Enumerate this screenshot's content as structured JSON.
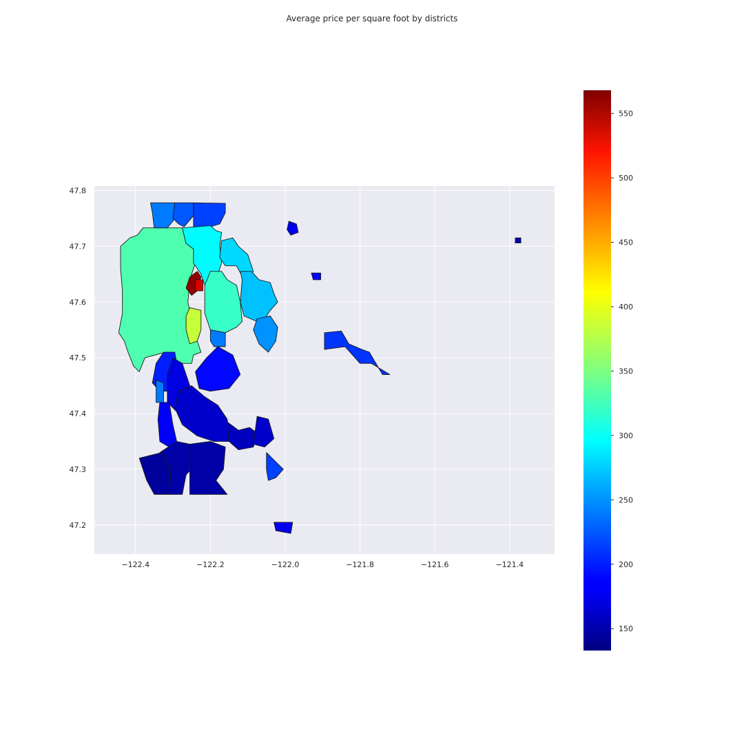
{
  "title": "Average price per square foot by districts",
  "chart_data": {
    "type": "choropleth",
    "title": "Average price per square foot by districts",
    "xlabel": "",
    "ylabel": "",
    "x_ticks": [
      -122.4,
      -122.2,
      -122.0,
      -121.8,
      -121.6,
      -121.4
    ],
    "x_tick_labels": [
      "−122.4",
      "−122.2",
      "−122.0",
      "−121.8",
      "−121.6",
      "−121.4"
    ],
    "y_ticks": [
      47.2,
      47.3,
      47.4,
      47.5,
      47.6,
      47.7,
      47.8
    ],
    "y_tick_labels": [
      "47.2",
      "47.3",
      "47.4",
      "47.5",
      "47.6",
      "47.7",
      "47.8"
    ],
    "xlim": [
      -122.51,
      -121.28
    ],
    "ylim": [
      47.148,
      47.808
    ],
    "grid": true,
    "colormap": "jet",
    "colorbar": {
      "range": [
        133,
        568
      ],
      "ticks": [
        150,
        200,
        250,
        300,
        350,
        400,
        450,
        500,
        550
      ],
      "placement": "right"
    },
    "districts": [
      {
        "id": "d01",
        "value": 330,
        "outline": [
          [
            -122.38,
            47.733
          ],
          [
            -122.275,
            47.733
          ],
          [
            -122.265,
            47.705
          ],
          [
            -122.245,
            47.695
          ],
          [
            -122.24,
            47.67
          ],
          [
            -122.255,
            47.64
          ],
          [
            -122.26,
            47.6
          ],
          [
            -122.25,
            47.565
          ],
          [
            -122.235,
            47.53
          ],
          [
            -122.225,
            47.51
          ],
          [
            -122.245,
            47.505
          ],
          [
            -122.25,
            47.49
          ],
          [
            -122.3,
            47.49
          ],
          [
            -122.32,
            47.51
          ],
          [
            -122.375,
            47.5
          ],
          [
            -122.39,
            47.475
          ],
          [
            -122.405,
            47.485
          ],
          [
            -122.42,
            47.51
          ],
          [
            -122.43,
            47.53
          ],
          [
            -122.445,
            47.545
          ],
          [
            -122.435,
            47.58
          ],
          [
            -122.435,
            47.62
          ],
          [
            -122.44,
            47.66
          ],
          [
            -122.44,
            47.7
          ],
          [
            -122.415,
            47.715
          ],
          [
            -122.395,
            47.72
          ]
        ]
      },
      {
        "id": "d02",
        "value": 240,
        "outline": [
          [
            -122.36,
            47.778
          ],
          [
            -122.295,
            47.778
          ],
          [
            -122.29,
            47.755
          ],
          [
            -122.3,
            47.745
          ],
          [
            -122.315,
            47.733
          ],
          [
            -122.35,
            47.733
          ],
          [
            -122.355,
            47.76
          ]
        ]
      },
      {
        "id": "d03",
        "value": 225,
        "outline": [
          [
            -122.295,
            47.778
          ],
          [
            -122.245,
            47.778
          ],
          [
            -122.245,
            47.755
          ],
          [
            -122.27,
            47.735
          ],
          [
            -122.285,
            47.74
          ],
          [
            -122.3,
            47.75
          ]
        ]
      },
      {
        "id": "d04",
        "value": 215,
        "outline": [
          [
            -122.245,
            47.778
          ],
          [
            -122.16,
            47.777
          ],
          [
            -122.16,
            47.76
          ],
          [
            -122.175,
            47.74
          ],
          [
            -122.2,
            47.735
          ],
          [
            -122.245,
            47.735
          ]
        ]
      },
      {
        "id": "d05",
        "value": 295,
        "outline": [
          [
            -122.275,
            47.733
          ],
          [
            -122.2,
            47.737
          ],
          [
            -122.185,
            47.728
          ],
          [
            -122.17,
            47.725
          ],
          [
            -122.175,
            47.7
          ],
          [
            -122.17,
            47.67
          ],
          [
            -122.185,
            47.64
          ],
          [
            -122.215,
            47.63
          ],
          [
            -122.225,
            47.65
          ],
          [
            -122.245,
            47.67
          ],
          [
            -122.245,
            47.695
          ],
          [
            -122.265,
            47.705
          ]
        ]
      },
      {
        "id": "d06",
        "value": 280,
        "outline": [
          [
            -122.17,
            47.71
          ],
          [
            -122.14,
            47.715
          ],
          [
            -122.125,
            47.7
          ],
          [
            -122.1,
            47.685
          ],
          [
            -122.085,
            47.655
          ],
          [
            -122.11,
            47.64
          ],
          [
            -122.13,
            47.665
          ],
          [
            -122.16,
            47.665
          ],
          [
            -122.175,
            47.68
          ]
        ]
      },
      {
        "id": "d07",
        "value": 270,
        "outline": [
          [
            -122.12,
            47.655
          ],
          [
            -122.09,
            47.655
          ],
          [
            -122.07,
            47.64
          ],
          [
            -122.04,
            47.635
          ],
          [
            -122.03,
            47.615
          ],
          [
            -122.02,
            47.6
          ],
          [
            -122.04,
            47.585
          ],
          [
            -122.055,
            47.57
          ],
          [
            -122.075,
            47.565
          ],
          [
            -122.11,
            47.575
          ],
          [
            -122.12,
            47.6
          ],
          [
            -122.115,
            47.64
          ]
        ]
      },
      {
        "id": "d08",
        "value": 320,
        "outline": [
          [
            -122.2,
            47.655
          ],
          [
            -122.17,
            47.655
          ],
          [
            -122.155,
            47.64
          ],
          [
            -122.13,
            47.63
          ],
          [
            -122.12,
            47.6
          ],
          [
            -122.115,
            47.565
          ],
          [
            -122.13,
            47.555
          ],
          [
            -122.16,
            47.545
          ],
          [
            -122.2,
            47.55
          ],
          [
            -122.215,
            47.58
          ],
          [
            -122.215,
            47.63
          ]
        ]
      },
      {
        "id": "d09",
        "value": 380,
        "outline": [
          [
            -122.255,
            47.59
          ],
          [
            -122.225,
            47.585
          ],
          [
            -122.225,
            47.55
          ],
          [
            -122.235,
            47.53
          ],
          [
            -122.255,
            47.525
          ],
          [
            -122.265,
            47.55
          ],
          [
            -122.265,
            47.575
          ]
        ]
      },
      {
        "id": "d10",
        "value": 560,
        "outline": [
          [
            -122.255,
            47.645
          ],
          [
            -122.235,
            47.655
          ],
          [
            -122.225,
            47.645
          ],
          [
            -122.235,
            47.62
          ],
          [
            -122.25,
            47.612
          ],
          [
            -122.265,
            47.625
          ]
        ]
      },
      {
        "id": "d11",
        "value": 530,
        "outline": [
          [
            -122.24,
            47.64
          ],
          [
            -122.22,
            47.64
          ],
          [
            -122.22,
            47.62
          ],
          [
            -122.24,
            47.62
          ]
        ]
      },
      {
        "id": "d12",
        "value": 250,
        "outline": [
          [
            -122.075,
            47.57
          ],
          [
            -122.04,
            47.575
          ],
          [
            -122.02,
            47.555
          ],
          [
            -122.025,
            47.53
          ],
          [
            -122.045,
            47.51
          ],
          [
            -122.07,
            47.525
          ],
          [
            -122.085,
            47.55
          ]
        ]
      },
      {
        "id": "d13",
        "value": 240,
        "outline": [
          [
            -122.2,
            47.55
          ],
          [
            -122.16,
            47.545
          ],
          [
            -122.16,
            47.52
          ],
          [
            -122.19,
            47.52
          ],
          [
            -122.2,
            47.53
          ]
        ]
      },
      {
        "id": "d14",
        "value": 190,
        "outline": [
          [
            -122.18,
            47.52
          ],
          [
            -122.14,
            47.505
          ],
          [
            -122.12,
            47.47
          ],
          [
            -122.15,
            47.445
          ],
          [
            -122.2,
            47.44
          ],
          [
            -122.23,
            47.445
          ],
          [
            -122.24,
            47.475
          ],
          [
            -122.21,
            47.5
          ]
        ]
      },
      {
        "id": "d15",
        "value": 200,
        "outline": [
          [
            -122.325,
            47.51
          ],
          [
            -122.295,
            47.51
          ],
          [
            -122.285,
            47.47
          ],
          [
            -122.3,
            47.44
          ],
          [
            -122.335,
            47.44
          ],
          [
            -122.355,
            47.455
          ],
          [
            -122.345,
            47.49
          ]
        ]
      },
      {
        "id": "d16",
        "value": 240,
        "outline": [
          [
            -122.345,
            47.46
          ],
          [
            -122.325,
            47.455
          ],
          [
            -122.325,
            47.42
          ],
          [
            -122.345,
            47.42
          ]
        ]
      },
      {
        "id": "d17",
        "value": 175,
        "outline": [
          [
            -122.3,
            47.5
          ],
          [
            -122.275,
            47.49
          ],
          [
            -122.255,
            47.45
          ],
          [
            -122.255,
            47.405
          ],
          [
            -122.285,
            47.4
          ],
          [
            -122.315,
            47.42
          ],
          [
            -122.315,
            47.47
          ]
        ]
      },
      {
        "id": "d18",
        "value": 185,
        "outline": [
          [
            -122.335,
            47.42
          ],
          [
            -122.31,
            47.42
          ],
          [
            -122.3,
            47.38
          ],
          [
            -122.29,
            47.35
          ],
          [
            -122.31,
            47.34
          ],
          [
            -122.335,
            47.35
          ],
          [
            -122.34,
            47.39
          ]
        ]
      },
      {
        "id": "d19",
        "value": 165,
        "outline": [
          [
            -122.285,
            47.44
          ],
          [
            -122.25,
            47.45
          ],
          [
            -122.215,
            47.43
          ],
          [
            -122.18,
            47.415
          ],
          [
            -122.155,
            47.39
          ],
          [
            -122.145,
            47.35
          ],
          [
            -122.19,
            47.35
          ],
          [
            -122.235,
            47.36
          ],
          [
            -122.275,
            47.38
          ],
          [
            -122.295,
            47.41
          ]
        ]
      },
      {
        "id": "d20",
        "value": 160,
        "outline": [
          [
            -122.155,
            47.385
          ],
          [
            -122.125,
            47.37
          ],
          [
            -122.095,
            47.375
          ],
          [
            -122.075,
            47.365
          ],
          [
            -122.085,
            47.34
          ],
          [
            -122.125,
            47.335
          ],
          [
            -122.15,
            47.35
          ]
        ]
      },
      {
        "id": "d21",
        "value": 165,
        "outline": [
          [
            -122.075,
            47.395
          ],
          [
            -122.045,
            47.39
          ],
          [
            -122.03,
            47.355
          ],
          [
            -122.055,
            47.34
          ],
          [
            -122.085,
            47.345
          ],
          [
            -122.08,
            47.37
          ]
        ]
      },
      {
        "id": "d22",
        "value": 150,
        "outline": [
          [
            -122.29,
            47.35
          ],
          [
            -122.255,
            47.345
          ],
          [
            -122.225,
            47.32
          ],
          [
            -122.265,
            47.29
          ],
          [
            -122.275,
            47.255
          ],
          [
            -122.315,
            47.255
          ],
          [
            -122.33,
            47.3
          ],
          [
            -122.335,
            47.33
          ]
        ]
      },
      {
        "id": "d23",
        "value": 145,
        "outline": [
          [
            -122.39,
            47.32
          ],
          [
            -122.33,
            47.33
          ],
          [
            -122.305,
            47.3
          ],
          [
            -122.31,
            47.255
          ],
          [
            -122.35,
            47.255
          ],
          [
            -122.37,
            47.28
          ]
        ]
      },
      {
        "id": "d24",
        "value": 150,
        "outline": [
          [
            -122.255,
            47.345
          ],
          [
            -122.2,
            47.35
          ],
          [
            -122.16,
            47.34
          ],
          [
            -122.165,
            47.3
          ],
          [
            -122.185,
            47.28
          ],
          [
            -122.155,
            47.255
          ],
          [
            -122.255,
            47.255
          ],
          [
            -122.255,
            47.3
          ]
        ]
      },
      {
        "id": "d25",
        "value": 215,
        "outline": [
          [
            -122.05,
            47.33
          ],
          [
            -122.02,
            47.31
          ],
          [
            -122.005,
            47.3
          ],
          [
            -122.025,
            47.285
          ],
          [
            -122.045,
            47.28
          ],
          [
            -122.05,
            47.3
          ]
        ]
      },
      {
        "id": "d26",
        "value": 180,
        "outline": [
          [
            -122.03,
            47.205
          ],
          [
            -121.98,
            47.205
          ],
          [
            -121.985,
            47.185
          ],
          [
            -122.025,
            47.19
          ]
        ]
      },
      {
        "id": "d27",
        "value": 210,
        "outline": [
          [
            -121.895,
            47.545
          ],
          [
            -121.85,
            47.548
          ],
          [
            -121.83,
            47.525
          ],
          [
            -121.795,
            47.515
          ],
          [
            -121.775,
            47.51
          ],
          [
            -121.74,
            47.47
          ],
          [
            -121.72,
            47.47
          ],
          [
            -121.77,
            47.49
          ],
          [
            -121.8,
            47.49
          ],
          [
            -121.84,
            47.52
          ],
          [
            -121.895,
            47.515
          ]
        ]
      },
      {
        "id": "d28",
        "value": 180,
        "outline": [
          [
            -121.99,
            47.745
          ],
          [
            -121.97,
            47.74
          ],
          [
            -121.965,
            47.725
          ],
          [
            -121.985,
            47.72
          ],
          [
            -121.995,
            47.73
          ]
        ]
      },
      {
        "id": "d29",
        "value": 190,
        "outline": [
          [
            -121.93,
            47.652
          ],
          [
            -121.905,
            47.652
          ],
          [
            -121.905,
            47.64
          ],
          [
            -121.925,
            47.64
          ]
        ]
      },
      {
        "id": "d30",
        "value": 155,
        "outline": [
          [
            -121.385,
            47.715
          ],
          [
            -121.37,
            47.715
          ],
          [
            -121.37,
            47.706
          ],
          [
            -121.385,
            47.706
          ]
        ]
      }
    ]
  }
}
